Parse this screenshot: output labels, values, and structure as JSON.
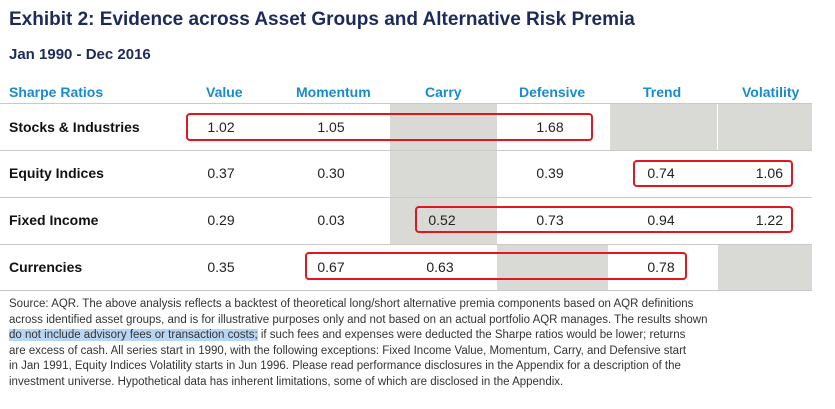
{
  "title": "Exhibit 2: Evidence across Asset Groups and Alternative Risk Premia",
  "subtitle": "Jan 1990 - Dec 2016",
  "table": {
    "corner_label": "Sharpe Ratios",
    "columns": [
      "Value",
      "Momentum",
      "Carry",
      "Defensive",
      "Trend",
      "Volatility"
    ],
    "rows": [
      {
        "label": "Stocks & Industries",
        "values": [
          "1.02",
          "1.05",
          "",
          "1.68",
          "",
          ""
        ]
      },
      {
        "label": "Equity Indices",
        "values": [
          "0.37",
          "0.30",
          "",
          "0.39",
          "0.74",
          "1.06"
        ]
      },
      {
        "label": "Fixed Income",
        "values": [
          "0.29",
          "0.03",
          "0.52",
          "0.73",
          "0.94",
          "1.22"
        ]
      },
      {
        "label": "Currencies",
        "values": [
          "0.35",
          "0.67",
          "0.63",
          "",
          "0.78",
          ""
        ]
      }
    ]
  },
  "source": {
    "line1": "Source: AQR. The above analysis reflects a backtest of theoretical long/short alternative premia components based on AQR definitions",
    "line2": "across identified asset groups, and is for illustrative purposes only and not based on an actual portfolio AQR manages. The results shown",
    "line3_selected": "do not include advisory fees or transaction costs;",
    "line3_rest": " if such fees and expenses were deducted the Sharpe ratios would be lower; returns",
    "line4": "are excess of cash. All series start in 1990, with the following exceptions: Fixed Income Value, Momentum, Carry, and Defensive start",
    "line5": "in Jan 1991, Equity Indices Volatility starts in Jun 1996. Please read performance disclosures in the Appendix for a description of the",
    "line6": "investment universe. Hypothetical data has inherent limitations, some of which are disclosed in the Appendix."
  },
  "colors": {
    "title": "#1d2a5a",
    "header": "#1a8ad0",
    "highlight_box": "#e1161e",
    "shaded_cell": "#d9d9d6",
    "text_selection": "#b7d6f5"
  }
}
